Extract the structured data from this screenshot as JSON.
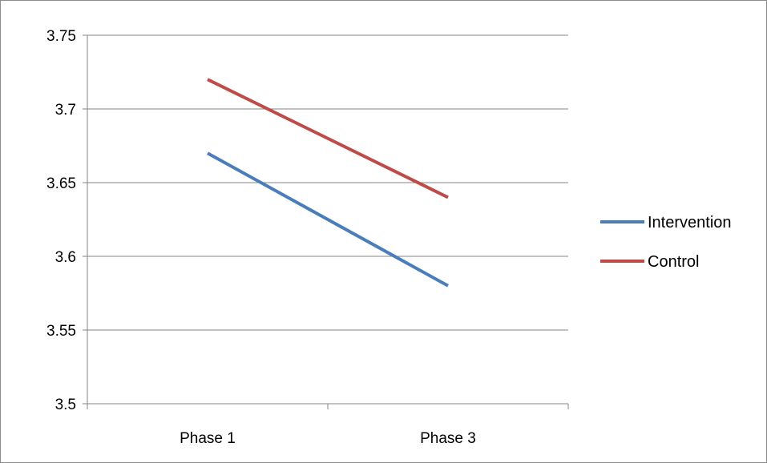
{
  "chart_data": {
    "type": "line",
    "title": "",
    "xlabel": "",
    "ylabel": "",
    "categories": [
      "Phase 1",
      "Phase 3"
    ],
    "ylim": [
      3.5,
      3.75
    ],
    "yticks": [
      3.5,
      3.55,
      3.6,
      3.65,
      3.7,
      3.75
    ],
    "ytick_labels": [
      "3.5",
      "3.55",
      "3.6",
      "3.65",
      "3.7",
      "3.75"
    ],
    "grid": true,
    "legend_position": "right",
    "series": [
      {
        "name": "Intervention",
        "values": [
          3.67,
          3.58
        ],
        "color": "#4a7ebb"
      },
      {
        "name": "Control",
        "values": [
          3.72,
          3.64
        ],
        "color": "#be4b48"
      }
    ],
    "colors": {
      "gridline": "#868686",
      "axis": "#868686"
    }
  }
}
